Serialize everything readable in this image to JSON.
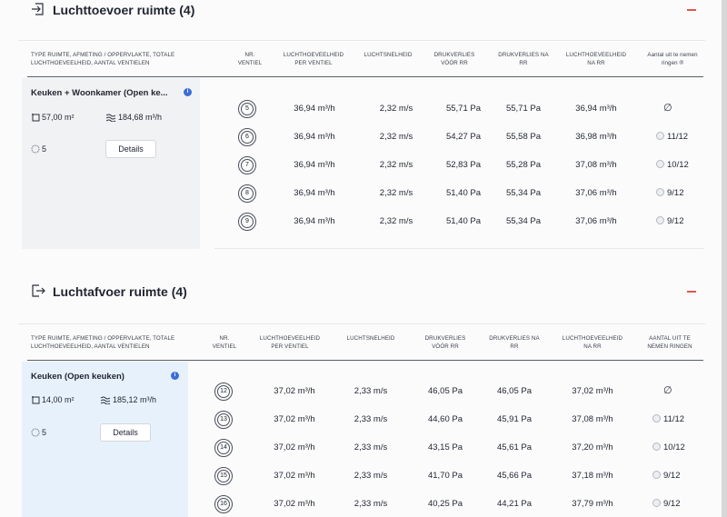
{
  "colors": {
    "accent_red": "#e0554d",
    "info_blue": "#3b6fd6",
    "card_gray": "#f1f2f4",
    "card_blue": "#e7f1fb"
  },
  "sections": [
    {
      "title": "Luchttoevoer ruimte (4)",
      "icon": "enter-arrow-icon",
      "headers": {
        "room": "TYPE RUIMTE, AFMETING / OPPERVLAKTE, TOTALE LUCHTHOEVEELHEID, AANTAL VENTIELEN",
        "nr": "NR. VENTIEL",
        "flow": "LUCHTHOEVEELHEID PER VENTIEL",
        "speed": "LUCHTSNELHEID",
        "loss_before": "DRUKVERLIES VÓÓR RR",
        "loss_after": "DRUKVERLIES NA RR",
        "flow_after": "LUCHTHOEVEELHEID NA RR",
        "rings": "Aantal uit te nemen ringen ®"
      },
      "room": {
        "name": "Keuken + Woonkamer (Open ke...",
        "area": "57,00 m²",
        "total_flow": "184,68 m³/h",
        "vent_count": "5",
        "details_label": "Details"
      },
      "rows": [
        {
          "nr": "5",
          "flow": "36,94 m³/h",
          "speed": "2,32 m/s",
          "loss_before": "55,71 Pa",
          "loss_after": "55,71 Pa",
          "flow_after": "36,94 m³/h",
          "rings": "∅"
        },
        {
          "nr": "6",
          "flow": "36,94 m³/h",
          "speed": "2,32 m/s",
          "loss_before": "54,27 Pa",
          "loss_after": "55,58 Pa",
          "flow_after": "36,98 m³/h",
          "rings": "11/12"
        },
        {
          "nr": "7",
          "flow": "36,94 m³/h",
          "speed": "2,32 m/s",
          "loss_before": "52,83 Pa",
          "loss_after": "55,28 Pa",
          "flow_after": "37,08 m³/h",
          "rings": "10/12"
        },
        {
          "nr": "8",
          "flow": "36,94 m³/h",
          "speed": "2,32 m/s",
          "loss_before": "51,40 Pa",
          "loss_after": "55,34 Pa",
          "flow_after": "37,06 m³/h",
          "rings": "9/12"
        },
        {
          "nr": "9",
          "flow": "36,94 m³/h",
          "speed": "2,32 m/s",
          "loss_before": "51,40 Pa",
          "loss_after": "55,34 Pa",
          "flow_after": "37,06 m³/h",
          "rings": "9/12"
        }
      ]
    },
    {
      "title": "Luchtafvoer ruimte (4)",
      "icon": "exit-arrow-icon",
      "headers": {
        "room": "TYPE RUIMTE, AFMETING / OPPERVLAKTE, TOTALE LUCHTHOEVEELHEID, AANTAL VENTIELEN",
        "nr": "NR. VENTIEL",
        "flow": "LUCHTHOEVEELHEID PER VENTIEL",
        "speed": "LUCHTSNELHEID",
        "loss_before": "DRUKVERLIES VÓÓR RR",
        "loss_after": "DRUKVERLIES NA RR",
        "flow_after": "LUCHTHOEVEELHEID NA RR",
        "rings": "AANTAL UIT TE NEMEN RINGEN"
      },
      "room": {
        "name": "Keuken (Open keuken)",
        "area": "14,00 m²",
        "total_flow": "185,12 m³/h",
        "vent_count": "5",
        "details_label": "Details"
      },
      "rows": [
        {
          "nr": "12",
          "flow": "37,02 m³/h",
          "speed": "2,33 m/s",
          "loss_before": "46,05 Pa",
          "loss_after": "46,05 Pa",
          "flow_after": "37,02 m³/h",
          "rings": "∅"
        },
        {
          "nr": "13",
          "flow": "37,02 m³/h",
          "speed": "2,33 m/s",
          "loss_before": "44,60 Pa",
          "loss_after": "45,91 Pa",
          "flow_after": "37,08 m³/h",
          "rings": "11/12"
        },
        {
          "nr": "14",
          "flow": "37,02 m³/h",
          "speed": "2,33 m/s",
          "loss_before": "43,15 Pa",
          "loss_after": "45,61 Pa",
          "flow_after": "37,20 m³/h",
          "rings": "10/12"
        },
        {
          "nr": "15",
          "flow": "37,02 m³/h",
          "speed": "2,33 m/s",
          "loss_before": "41,70 Pa",
          "loss_after": "45,66 Pa",
          "flow_after": "37,18 m³/h",
          "rings": "9/12"
        },
        {
          "nr": "16",
          "flow": "37,02 m³/h",
          "speed": "2,33 m/s",
          "loss_before": "40,25 Pa",
          "loss_after": "44,21 Pa",
          "flow_after": "37,79 m³/h",
          "rings": "9/12"
        }
      ]
    }
  ]
}
